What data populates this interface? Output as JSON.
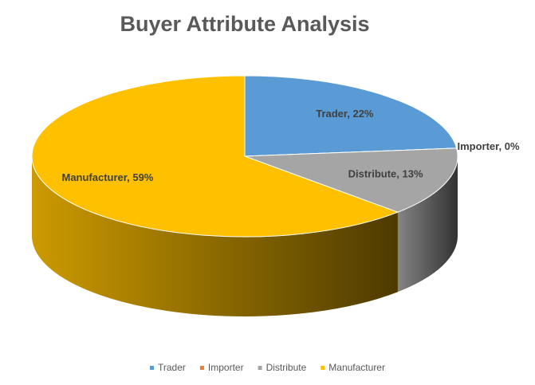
{
  "chart_data": {
    "type": "pie",
    "title": "Buyer Attribute Analysis",
    "categories": [
      "Trader",
      "Importer",
      "Distribute",
      "Manufacturer"
    ],
    "values": [
      22,
      0,
      13,
      59
    ],
    "value_labels": [
      "Trader, 22%",
      "Importer, 0%",
      "Distribute, 13%",
      "Manufacturer, 59%"
    ],
    "colors": [
      "#5b9bd5",
      "#ed7d31",
      "#a5a5a5",
      "#ffc000"
    ],
    "legend": "bottom"
  }
}
